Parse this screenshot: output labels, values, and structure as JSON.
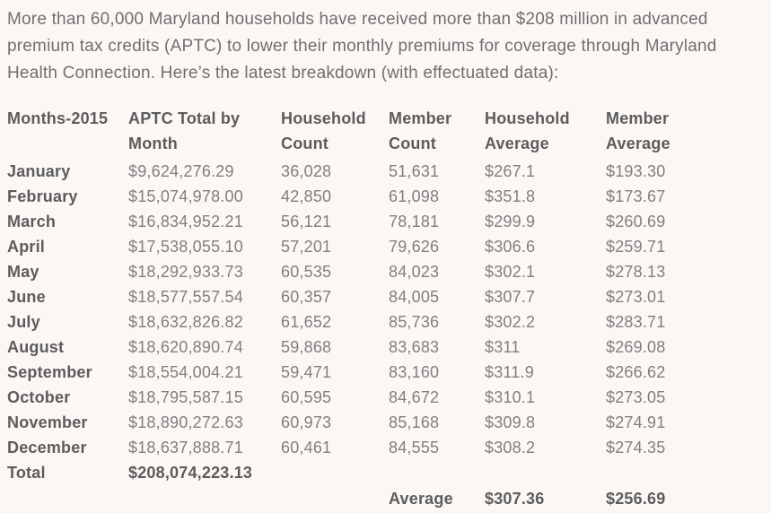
{
  "colors": {
    "background": "#fdf7f4",
    "paragraph_text": "#6e6f72",
    "heading_text": "#5b5c5e",
    "value_text": "#7e7f82"
  },
  "intro": "More than 60,000 Maryland households have received more than $208 million in advanced premium tax credits (APTC) to lower their monthly premiums for coverage through Maryland Health Connection. Here’s the latest breakdown (with effectuated data):",
  "table": {
    "headers": [
      "Months-2015",
      "APTC Total by Month",
      "Household Count",
      "Member Count",
      "Household Average",
      "Member Average"
    ],
    "rows": [
      [
        "January",
        "$9,624,276.29",
        "36,028",
        "51,631",
        "$267.1",
        "$193.30"
      ],
      [
        "February",
        "$15,074,978.00",
        "42,850",
        "61,098",
        "$351.8",
        "$173.67"
      ],
      [
        "March",
        "$16,834,952.21",
        "56,121",
        "78,181",
        "$299.9",
        "$260.69"
      ],
      [
        "April",
        "$17,538,055.10",
        "57,201",
        "79,626",
        "$306.6",
        "$259.71"
      ],
      [
        "May",
        "$18,292,933.73",
        "60,535",
        "84,023",
        "$302.1",
        "$278.13"
      ],
      [
        "June",
        "$18,577,557.54",
        "60,357",
        "84,005",
        "$307.7",
        "$273.01"
      ],
      [
        "July",
        "$18,632,826.82",
        "61,652",
        "85,736",
        "$302.2",
        "$283.71"
      ],
      [
        "August",
        "$18,620,890.74",
        "59,868",
        "83,683",
        "$311",
        "$269.08"
      ],
      [
        "September",
        "$18,554,004.21",
        "59,471",
        "83,160",
        "$311.9",
        "$266.62"
      ],
      [
        "October",
        "$18,795,587.15",
        "60,595",
        "84,672",
        "$310.1",
        "$273.05"
      ],
      [
        "November",
        "$18,890,272.63",
        "60,973",
        "85,168",
        "$309.8",
        "$274.91"
      ],
      [
        "December",
        "$18,637,888.71",
        "60,461",
        "84,555",
        "$308.2",
        "$274.35"
      ]
    ],
    "total_row": {
      "label": "Total",
      "aptc_total": "$208,074,223.13"
    },
    "average_row": {
      "label": "Average",
      "household_average": "$307.36",
      "member_average": "$256.69"
    }
  }
}
